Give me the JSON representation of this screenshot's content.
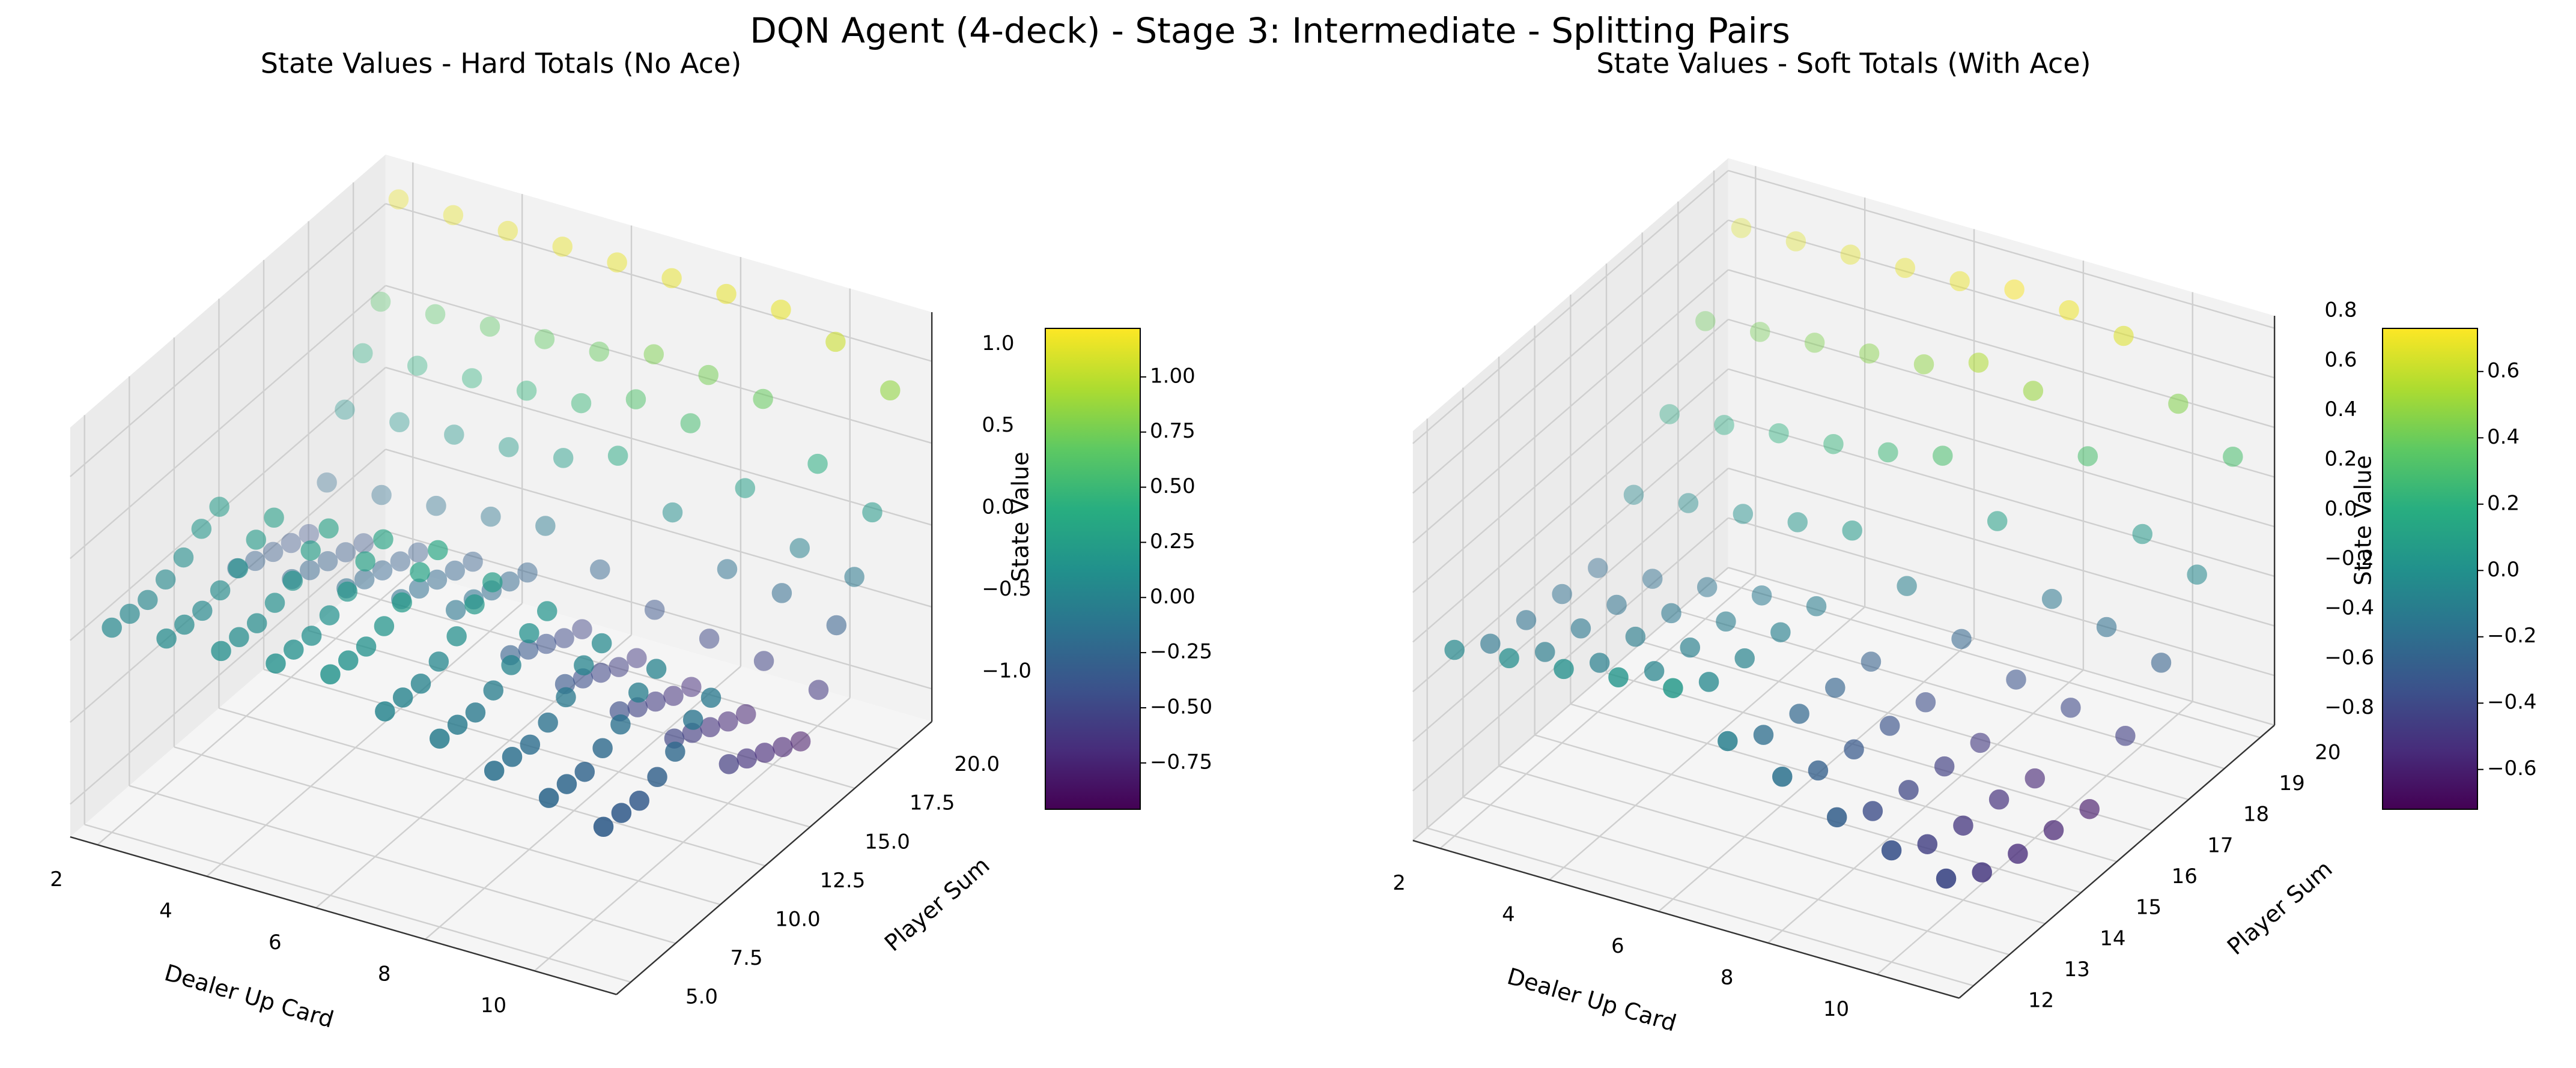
{
  "title": "DQN Agent (4-deck) - Stage 3: Intermediate - Splitting Pairs",
  "chart_data": [
    {
      "type": "scatter3d",
      "title": "State Values - Hard Totals (No Ace)",
      "xlabel": "Dealer Up Card",
      "ylabel": "Player Sum",
      "zlabel": "State Value",
      "x": [
        2,
        3,
        4,
        5,
        6,
        7,
        8,
        9,
        10,
        11
      ],
      "y": [
        5,
        6,
        7,
        8,
        9,
        10,
        11,
        12,
        13,
        14,
        15,
        16,
        17,
        18,
        19,
        20,
        21
      ],
      "values": [
        [
          0.05,
          0.08,
          0.1,
          0.12,
          0.15,
          0.02,
          -0.05,
          -0.15,
          -0.22,
          -0.3
        ],
        [
          0.04,
          0.07,
          0.09,
          0.11,
          0.14,
          0.01,
          -0.06,
          -0.16,
          -0.23,
          -0.31
        ],
        [
          0.03,
          0.06,
          0.08,
          0.1,
          0.13,
          0.0,
          -0.08,
          -0.18,
          -0.25,
          -0.33
        ],
        [
          0.06,
          0.09,
          0.11,
          0.13,
          0.16,
          0.04,
          -0.04,
          -0.14,
          -0.2,
          -0.28
        ],
        [
          0.1,
          0.13,
          0.15,
          0.18,
          0.21,
          0.1,
          0.02,
          -0.08,
          -0.15,
          -0.22
        ],
        [
          0.18,
          0.21,
          0.24,
          0.27,
          0.3,
          0.2,
          0.12,
          0.02,
          -0.05,
          -0.12
        ],
        [
          0.22,
          0.25,
          0.28,
          0.31,
          0.34,
          0.24,
          0.16,
          0.06,
          0.0,
          -0.08
        ],
        [
          -0.25,
          -0.22,
          -0.18,
          -0.15,
          -0.12,
          -0.3,
          -0.38,
          -0.45,
          -0.52,
          -0.58
        ],
        [
          -0.3,
          -0.26,
          -0.22,
          -0.18,
          -0.15,
          -0.36,
          -0.44,
          -0.52,
          -0.58,
          -0.64
        ],
        [
          -0.34,
          -0.3,
          -0.26,
          -0.22,
          -0.19,
          -0.42,
          -0.5,
          -0.58,
          -0.64,
          -0.7
        ],
        [
          -0.38,
          -0.34,
          -0.3,
          -0.26,
          -0.23,
          -0.48,
          -0.56,
          -0.64,
          -0.7,
          -0.76
        ],
        [
          -0.42,
          -0.38,
          -0.34,
          -0.3,
          -0.27,
          -0.52,
          -0.6,
          -0.68,
          -0.75,
          -0.82
        ],
        [
          -0.2,
          -0.18,
          -0.15,
          -0.12,
          -0.08,
          -0.25,
          -0.4,
          -0.48,
          -0.52,
          -0.6
        ],
        [
          0.15,
          0.17,
          0.19,
          0.21,
          0.24,
          0.35,
          0.1,
          -0.15,
          -0.2,
          -0.3
        ],
        [
          0.4,
          0.42,
          0.44,
          0.46,
          0.48,
          0.6,
          0.55,
          0.25,
          -0.02,
          -0.1
        ],
        [
          0.62,
          0.64,
          0.66,
          0.68,
          0.7,
          0.78,
          0.75,
          0.7,
          0.4,
          0.2
        ],
        [
          1.15,
          1.15,
          1.15,
          1.15,
          1.15,
          1.15,
          1.15,
          1.15,
          1.05,
          0.85
        ]
      ],
      "xlim": [
        1.5,
        11.5
      ],
      "ylim": [
        4.2,
        21.8
      ],
      "zlim": [
        -1.2,
        1.3
      ],
      "xticks": [
        2,
        4,
        6,
        8,
        10
      ],
      "yticks": [
        {
          "value": 5,
          "label": "5.0"
        },
        {
          "value": 7.5,
          "label": "7.5"
        },
        {
          "value": 10,
          "label": "10.0"
        },
        {
          "value": 12.5,
          "label": "12.5"
        },
        {
          "value": 15,
          "label": "15.0"
        },
        {
          "value": 17.5,
          "label": "17.5"
        },
        {
          "value": 20,
          "label": "20.0"
        }
      ],
      "zticks": [
        {
          "value": -1,
          "label": "−1.0"
        },
        {
          "value": -0.5,
          "label": "−0.5"
        },
        {
          "value": 0,
          "label": "0.0"
        },
        {
          "value": 0.5,
          "label": "0.5"
        },
        {
          "value": 1,
          "label": "1.0"
        }
      ],
      "colormap": "viridis",
      "clim": [
        -0.96,
        1.22
      ],
      "cticks": [
        {
          "value": -0.75,
          "label": "−0.75"
        },
        {
          "value": -0.5,
          "label": "−0.50"
        },
        {
          "value": -0.25,
          "label": "−0.25"
        },
        {
          "value": 0,
          "label": "0.00"
        },
        {
          "value": 0.25,
          "label": "0.25"
        },
        {
          "value": 0.5,
          "label": "0.50"
        },
        {
          "value": 0.75,
          "label": "0.75"
        },
        {
          "value": 1,
          "label": "1.00"
        }
      ]
    },
    {
      "type": "scatter3d",
      "title": "State Values - Soft Totals (With Ace)",
      "xlabel": "Dealer Up Card",
      "ylabel": "Player Sum",
      "zlabel": "State Value",
      "x": [
        2,
        3,
        4,
        5,
        6,
        7,
        8,
        9,
        10,
        11
      ],
      "y": [
        12,
        13,
        14,
        15,
        16,
        17,
        18,
        19,
        20
      ],
      "values": [
        [
          -0.05,
          -0.02,
          0.0,
          0.03,
          0.05,
          -0.1,
          -0.18,
          -0.28,
          -0.35,
          -0.4
        ],
        [
          -0.15,
          -0.12,
          -0.1,
          -0.07,
          -0.05,
          -0.2,
          -0.28,
          -0.38,
          -0.45,
          -0.5
        ],
        [
          -0.18,
          -0.15,
          -0.12,
          -0.1,
          -0.08,
          -0.24,
          -0.32,
          -0.42,
          -0.5,
          -0.55
        ],
        [
          -0.2,
          -0.18,
          -0.15,
          -0.12,
          -0.1,
          -0.26,
          -0.35,
          -0.45,
          -0.52,
          -0.58
        ],
        [
          -0.22,
          -0.2,
          -0.17,
          -0.14,
          -0.12,
          -0.28,
          -0.38,
          -0.48,
          -0.56,
          -0.62
        ],
        [
          -0.05,
          -0.02,
          0.0,
          0.03,
          0.06,
          -0.1,
          -0.25,
          -0.35,
          -0.4,
          -0.45
        ],
        [
          0.15,
          0.17,
          0.2,
          0.22,
          0.25,
          0.3,
          0.1,
          -0.15,
          -0.2,
          -0.28
        ],
        [
          0.4,
          0.42,
          0.44,
          0.46,
          0.48,
          0.55,
          0.5,
          0.3,
          0.05,
          -0.05
        ],
        [
          0.65,
          0.66,
          0.67,
          0.68,
          0.69,
          0.72,
          0.7,
          0.66,
          0.45,
          0.3
        ]
      ],
      "xlim": [
        1.5,
        11.5
      ],
      "ylim": [
        11.6,
        20.4
      ],
      "zlim": [
        -0.8,
        0.85
      ],
      "xticks": [
        2,
        4,
        6,
        8,
        10
      ],
      "yticks": [
        12,
        13,
        14,
        15,
        16,
        17,
        18,
        19,
        20
      ],
      "zticks": [
        {
          "value": -0.8,
          "label": "−0.8"
        },
        {
          "value": -0.6,
          "label": "−0.6"
        },
        {
          "value": -0.4,
          "label": "−0.4"
        },
        {
          "value": -0.2,
          "label": "−0.2"
        },
        {
          "value": 0,
          "label": "0.0"
        },
        {
          "value": 0.2,
          "label": "0.2"
        },
        {
          "value": 0.4,
          "label": "0.4"
        },
        {
          "value": 0.6,
          "label": "0.6"
        },
        {
          "value": 0.8,
          "label": "0.8"
        }
      ],
      "colormap": "viridis",
      "clim": [
        -0.72,
        0.73
      ],
      "cticks": [
        {
          "value": -0.6,
          "label": "−0.6"
        },
        {
          "value": -0.4,
          "label": "−0.4"
        },
        {
          "value": -0.2,
          "label": "−0.2"
        },
        {
          "value": 0,
          "label": "0.0"
        },
        {
          "value": 0.2,
          "label": "0.2"
        },
        {
          "value": 0.4,
          "label": "0.4"
        },
        {
          "value": 0.6,
          "label": "0.6"
        }
      ]
    }
  ]
}
